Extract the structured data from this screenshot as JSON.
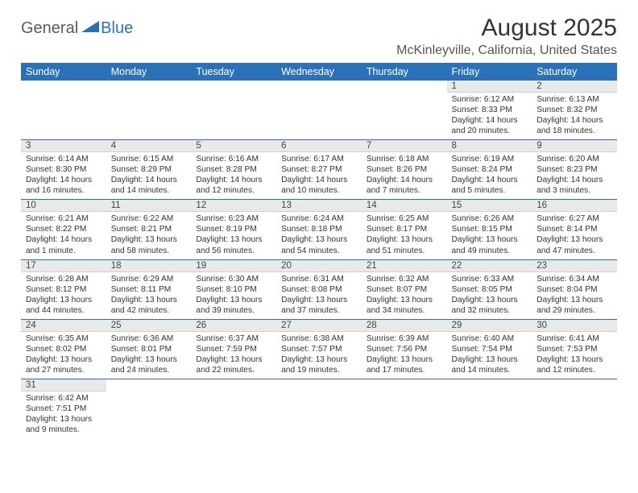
{
  "logo": {
    "text1": "General",
    "text2": "Blue"
  },
  "title": "August 2025",
  "location": "McKinleyville, California, United States",
  "colors": {
    "header_bg": "#2b71b8",
    "daynum_bg": "#e9e9e9",
    "week_border": "#2b71b8"
  },
  "day_headers": [
    "Sunday",
    "Monday",
    "Tuesday",
    "Wednesday",
    "Thursday",
    "Friday",
    "Saturday"
  ],
  "weeks": [
    [
      null,
      null,
      null,
      null,
      null,
      {
        "n": "1",
        "sunrise": "6:12 AM",
        "sunset": "8:33 PM",
        "daylight": "14 hours and 20 minutes."
      },
      {
        "n": "2",
        "sunrise": "6:13 AM",
        "sunset": "8:32 PM",
        "daylight": "14 hours and 18 minutes."
      }
    ],
    [
      {
        "n": "3",
        "sunrise": "6:14 AM",
        "sunset": "8:30 PM",
        "daylight": "14 hours and 16 minutes."
      },
      {
        "n": "4",
        "sunrise": "6:15 AM",
        "sunset": "8:29 PM",
        "daylight": "14 hours and 14 minutes."
      },
      {
        "n": "5",
        "sunrise": "6:16 AM",
        "sunset": "8:28 PM",
        "daylight": "14 hours and 12 minutes."
      },
      {
        "n": "6",
        "sunrise": "6:17 AM",
        "sunset": "8:27 PM",
        "daylight": "14 hours and 10 minutes."
      },
      {
        "n": "7",
        "sunrise": "6:18 AM",
        "sunset": "8:26 PM",
        "daylight": "14 hours and 7 minutes."
      },
      {
        "n": "8",
        "sunrise": "6:19 AM",
        "sunset": "8:24 PM",
        "daylight": "14 hours and 5 minutes."
      },
      {
        "n": "9",
        "sunrise": "6:20 AM",
        "sunset": "8:23 PM",
        "daylight": "14 hours and 3 minutes."
      }
    ],
    [
      {
        "n": "10",
        "sunrise": "6:21 AM",
        "sunset": "8:22 PM",
        "daylight": "14 hours and 1 minute."
      },
      {
        "n": "11",
        "sunrise": "6:22 AM",
        "sunset": "8:21 PM",
        "daylight": "13 hours and 58 minutes."
      },
      {
        "n": "12",
        "sunrise": "6:23 AM",
        "sunset": "8:19 PM",
        "daylight": "13 hours and 56 minutes."
      },
      {
        "n": "13",
        "sunrise": "6:24 AM",
        "sunset": "8:18 PM",
        "daylight": "13 hours and 54 minutes."
      },
      {
        "n": "14",
        "sunrise": "6:25 AM",
        "sunset": "8:17 PM",
        "daylight": "13 hours and 51 minutes."
      },
      {
        "n": "15",
        "sunrise": "6:26 AM",
        "sunset": "8:15 PM",
        "daylight": "13 hours and 49 minutes."
      },
      {
        "n": "16",
        "sunrise": "6:27 AM",
        "sunset": "8:14 PM",
        "daylight": "13 hours and 47 minutes."
      }
    ],
    [
      {
        "n": "17",
        "sunrise": "6:28 AM",
        "sunset": "8:12 PM",
        "daylight": "13 hours and 44 minutes."
      },
      {
        "n": "18",
        "sunrise": "6:29 AM",
        "sunset": "8:11 PM",
        "daylight": "13 hours and 42 minutes."
      },
      {
        "n": "19",
        "sunrise": "6:30 AM",
        "sunset": "8:10 PM",
        "daylight": "13 hours and 39 minutes."
      },
      {
        "n": "20",
        "sunrise": "6:31 AM",
        "sunset": "8:08 PM",
        "daylight": "13 hours and 37 minutes."
      },
      {
        "n": "21",
        "sunrise": "6:32 AM",
        "sunset": "8:07 PM",
        "daylight": "13 hours and 34 minutes."
      },
      {
        "n": "22",
        "sunrise": "6:33 AM",
        "sunset": "8:05 PM",
        "daylight": "13 hours and 32 minutes."
      },
      {
        "n": "23",
        "sunrise": "6:34 AM",
        "sunset": "8:04 PM",
        "daylight": "13 hours and 29 minutes."
      }
    ],
    [
      {
        "n": "24",
        "sunrise": "6:35 AM",
        "sunset": "8:02 PM",
        "daylight": "13 hours and 27 minutes."
      },
      {
        "n": "25",
        "sunrise": "6:36 AM",
        "sunset": "8:01 PM",
        "daylight": "13 hours and 24 minutes."
      },
      {
        "n": "26",
        "sunrise": "6:37 AM",
        "sunset": "7:59 PM",
        "daylight": "13 hours and 22 minutes."
      },
      {
        "n": "27",
        "sunrise": "6:38 AM",
        "sunset": "7:57 PM",
        "daylight": "13 hours and 19 minutes."
      },
      {
        "n": "28",
        "sunrise": "6:39 AM",
        "sunset": "7:56 PM",
        "daylight": "13 hours and 17 minutes."
      },
      {
        "n": "29",
        "sunrise": "6:40 AM",
        "sunset": "7:54 PM",
        "daylight": "13 hours and 14 minutes."
      },
      {
        "n": "30",
        "sunrise": "6:41 AM",
        "sunset": "7:53 PM",
        "daylight": "13 hours and 12 minutes."
      }
    ],
    [
      {
        "n": "31",
        "sunrise": "6:42 AM",
        "sunset": "7:51 PM",
        "daylight": "13 hours and 9 minutes."
      },
      null,
      null,
      null,
      null,
      null,
      null
    ]
  ],
  "labels": {
    "sunrise": "Sunrise: ",
    "sunset": "Sunset: ",
    "daylight": "Daylight: "
  }
}
